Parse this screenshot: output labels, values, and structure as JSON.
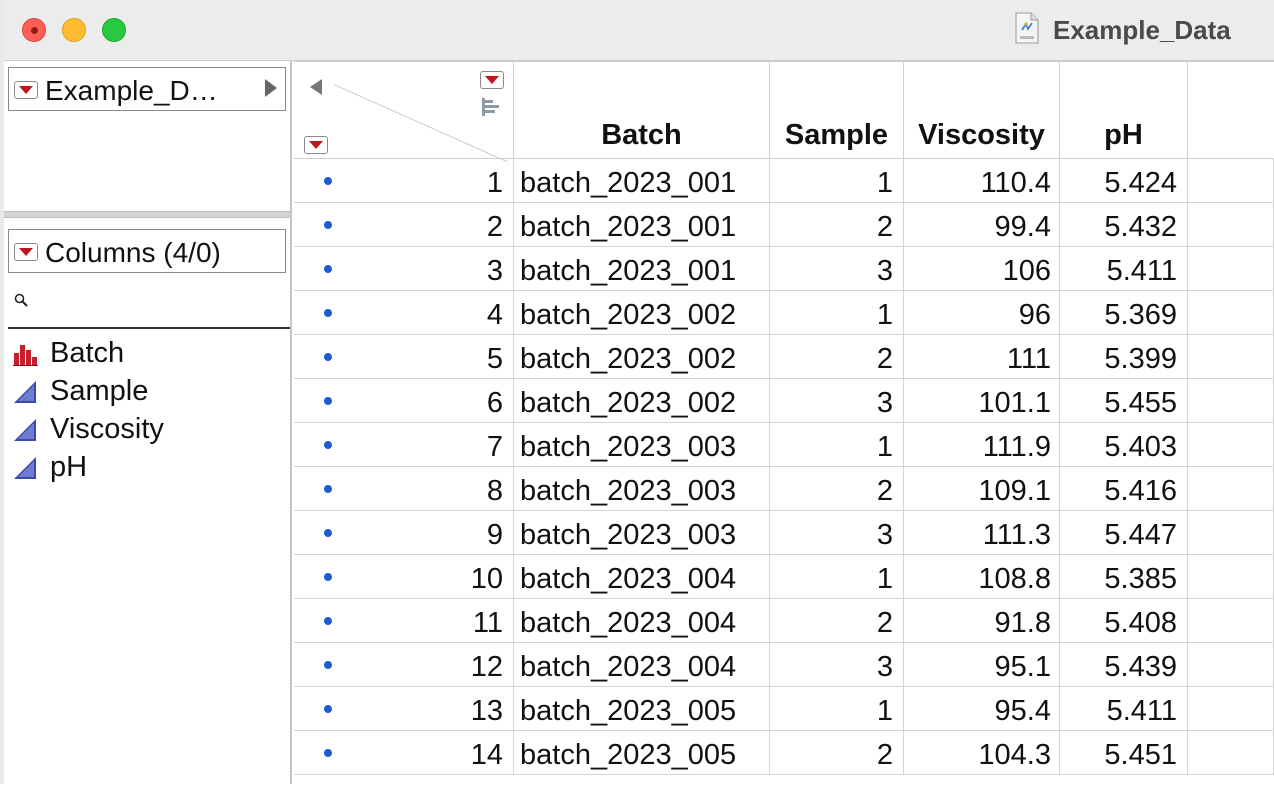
{
  "window": {
    "title": "Example_Data"
  },
  "left_panel": {
    "table_name": "Example_D…",
    "columns_label": "Columns (4/0)",
    "search_placeholder": "",
    "columns": [
      {
        "name": "Batch",
        "icon": "nominal-bar-icon"
      },
      {
        "name": "Sample",
        "icon": "continuous-triangle-icon"
      },
      {
        "name": "Viscosity",
        "icon": "continuous-triangle-icon"
      },
      {
        "name": "pH",
        "icon": "continuous-triangle-icon"
      }
    ]
  },
  "grid": {
    "headers": {
      "batch": "Batch",
      "sample": "Sample",
      "viscosity": "Viscosity",
      "ph": "pH"
    },
    "rows": [
      {
        "n": "1",
        "batch": "batch_2023_001",
        "sample": "1",
        "viscosity": "110.4",
        "ph": "5.424"
      },
      {
        "n": "2",
        "batch": "batch_2023_001",
        "sample": "2",
        "viscosity": "99.4",
        "ph": "5.432"
      },
      {
        "n": "3",
        "batch": "batch_2023_001",
        "sample": "3",
        "viscosity": "106",
        "ph": "5.411"
      },
      {
        "n": "4",
        "batch": "batch_2023_002",
        "sample": "1",
        "viscosity": "96",
        "ph": "5.369"
      },
      {
        "n": "5",
        "batch": "batch_2023_002",
        "sample": "2",
        "viscosity": "111",
        "ph": "5.399"
      },
      {
        "n": "6",
        "batch": "batch_2023_002",
        "sample": "3",
        "viscosity": "101.1",
        "ph": "5.455"
      },
      {
        "n": "7",
        "batch": "batch_2023_003",
        "sample": "1",
        "viscosity": "111.9",
        "ph": "5.403"
      },
      {
        "n": "8",
        "batch": "batch_2023_003",
        "sample": "2",
        "viscosity": "109.1",
        "ph": "5.416"
      },
      {
        "n": "9",
        "batch": "batch_2023_003",
        "sample": "3",
        "viscosity": "111.3",
        "ph": "5.447"
      },
      {
        "n": "10",
        "batch": "batch_2023_004",
        "sample": "1",
        "viscosity": "108.8",
        "ph": "5.385"
      },
      {
        "n": "11",
        "batch": "batch_2023_004",
        "sample": "2",
        "viscosity": "91.8",
        "ph": "5.408"
      },
      {
        "n": "12",
        "batch": "batch_2023_004",
        "sample": "3",
        "viscosity": "95.1",
        "ph": "5.439"
      },
      {
        "n": "13",
        "batch": "batch_2023_005",
        "sample": "1",
        "viscosity": "95.4",
        "ph": "5.411"
      },
      {
        "n": "14",
        "batch": "batch_2023_005",
        "sample": "2",
        "viscosity": "104.3",
        "ph": "5.451"
      }
    ]
  },
  "colors": {
    "close": "#ff5f57",
    "minimize": "#febc2e",
    "maximize": "#28c840",
    "red_triangle": "#c0151b",
    "row_marker": "#1f5bd0",
    "nominal_icon": "#c8202b",
    "continuous_icon": "#3b4aa8"
  }
}
